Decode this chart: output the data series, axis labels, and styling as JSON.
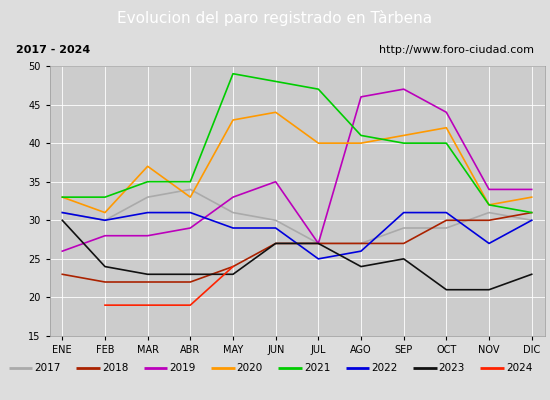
{
  "title": "Evolucion del paro registrado en Tàrbena",
  "subtitle_left": "2017 - 2024",
  "subtitle_right": "http://www.foro-ciudad.com",
  "months": [
    "ENE",
    "FEB",
    "MAR",
    "ABR",
    "MAY",
    "JUN",
    "JUL",
    "AGO",
    "SEP",
    "OCT",
    "NOV",
    "DIC"
  ],
  "ylim": [
    15,
    50
  ],
  "yticks": [
    15,
    20,
    25,
    30,
    35,
    40,
    45,
    50
  ],
  "series": {
    "2017": {
      "color": "#aaaaaa",
      "data": [
        31,
        30,
        33,
        34,
        31,
        30,
        27,
        27,
        29,
        29,
        31,
        30
      ]
    },
    "2018": {
      "color": "#aa2200",
      "data": [
        23,
        22,
        22,
        22,
        24,
        27,
        27,
        27,
        27,
        30,
        30,
        31
      ]
    },
    "2019": {
      "color": "#bb00bb",
      "data": [
        26,
        28,
        28,
        29,
        33,
        35,
        27,
        46,
        47,
        44,
        34,
        34
      ]
    },
    "2020": {
      "color": "#ff9900",
      "data": [
        33,
        31,
        37,
        33,
        43,
        44,
        40,
        40,
        41,
        42,
        32,
        33
      ]
    },
    "2021": {
      "color": "#00cc00",
      "data": [
        33,
        33,
        35,
        35,
        49,
        48,
        47,
        41,
        40,
        40,
        32,
        31
      ]
    },
    "2022": {
      "color": "#0000dd",
      "data": [
        31,
        30,
        31,
        31,
        29,
        29,
        25,
        26,
        31,
        31,
        27,
        30
      ]
    },
    "2023": {
      "color": "#111111",
      "data": [
        30,
        24,
        23,
        23,
        23,
        27,
        27,
        24,
        25,
        21,
        21,
        23
      ]
    },
    "2024": {
      "color": "#ff2200",
      "data": [
        null,
        19,
        null,
        19,
        24,
        null,
        null,
        null,
        null,
        null,
        null,
        null
      ]
    }
  },
  "background_color": "#dddddd",
  "plot_bg": "#cccccc",
  "title_bg": "#5588cc",
  "title_color": "white",
  "subtitle_bg": "#f5f5f5",
  "legend_bg": "#f0f0f0"
}
